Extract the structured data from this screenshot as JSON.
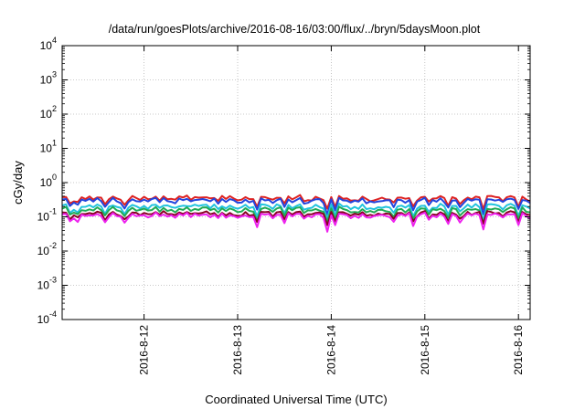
{
  "chart_data": {
    "type": "line",
    "title": "/data/run/goesPlots/archive/2016-08-16/03:00/flux/../bryn/5daysMoon.plot",
    "xlabel": "Coordinated Universal Time (UTC)",
    "ylabel": "cGy/day",
    "y_scale": "log",
    "ylim": [
      0.0001,
      10000
    ],
    "y_ticks": [
      {
        "base": "10",
        "exp": "-4",
        "value": 0.0001
      },
      {
        "base": "10",
        "exp": "-3",
        "value": 0.001
      },
      {
        "base": "10",
        "exp": "-2",
        "value": 0.01
      },
      {
        "base": "10",
        "exp": "-1",
        "value": 0.1
      },
      {
        "base": "10",
        "exp": "0",
        "value": 1
      },
      {
        "base": "10",
        "exp": "1",
        "value": 10
      },
      {
        "base": "10",
        "exp": "2",
        "value": 100
      },
      {
        "base": "10",
        "exp": "3",
        "value": 1000
      },
      {
        "base": "10",
        "exp": "4",
        "value": 10000
      }
    ],
    "xlim": [
      "2016-08-11T03:00",
      "2016-08-16T03:00"
    ],
    "x_ticks": [
      {
        "label": "2016-8-12",
        "value": "2016-08-12T00:00"
      },
      {
        "label": "2016-8-13",
        "value": "2016-08-13T00:00"
      },
      {
        "label": "2016-8-14",
        "value": "2016-08-14T00:00"
      },
      {
        "label": "2016-8-15",
        "value": "2016-08-15T00:00"
      },
      {
        "label": "2016-8-16",
        "value": "2016-08-16T00:00"
      }
    ],
    "grid": true,
    "sample_interval_hours": 1,
    "series": [
      {
        "color": "#dd2222",
        "base": 0.35,
        "dip": 0.45,
        "seed": 11
      },
      {
        "color": "#2244dd",
        "base": 0.3,
        "dip": 0.5,
        "seed": 23
      },
      {
        "color": "#22c4dd",
        "base": 0.2,
        "dip": 0.5,
        "seed": 37
      },
      {
        "color": "#22aa55",
        "base": 0.16,
        "dip": 0.5,
        "seed": 41
      },
      {
        "color": "#880022",
        "base": 0.125,
        "dip": 0.45,
        "seed": 53
      },
      {
        "color": "#ee22ee",
        "base": 0.11,
        "dip": 0.55,
        "seed": 67
      }
    ]
  }
}
